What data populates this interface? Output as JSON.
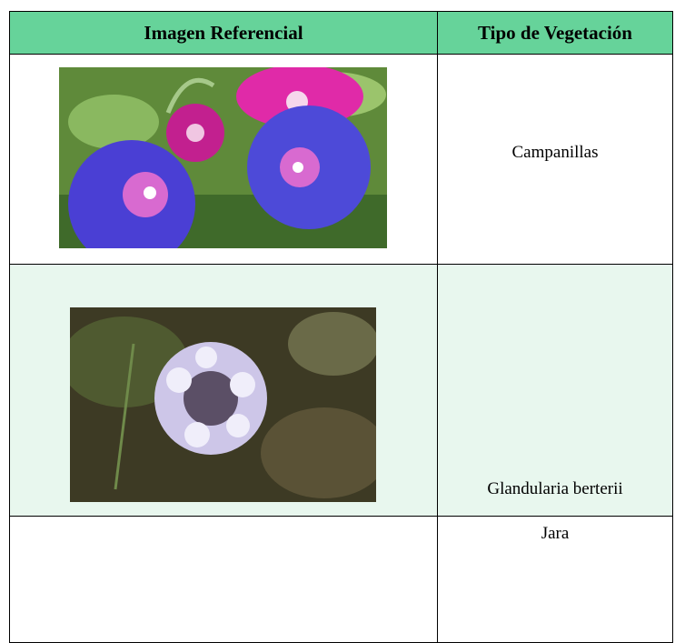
{
  "table": {
    "header": [
      "Imagen Referencial",
      "Tipo de Vegetación"
    ],
    "rows": [
      [
        "Campanillas"
      ],
      [
        "Glandularia berterii"
      ],
      [
        "Jara"
      ]
    ]
  }
}
